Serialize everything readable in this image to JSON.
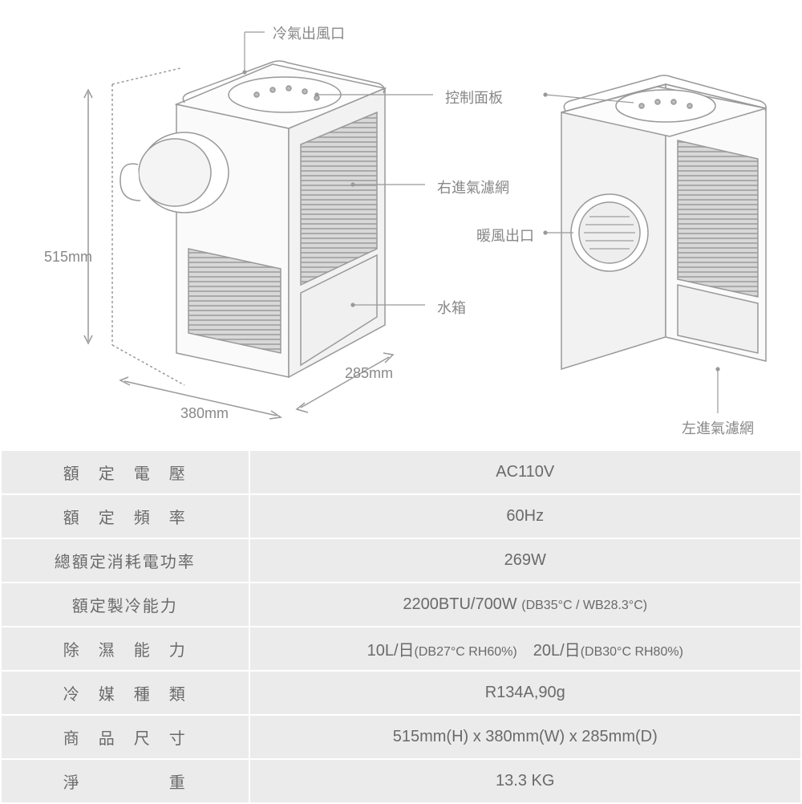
{
  "diagram": {
    "labels": {
      "air_outlet": "冷氣出風口",
      "control_panel": "控制面板",
      "right_filter": "右進氣濾網",
      "warm_outlet": "暖風出口",
      "water_tank": "水箱",
      "left_filter": "左進氣濾網"
    },
    "dimensions": {
      "height": "515mm",
      "width": "380mm",
      "depth": "285mm"
    },
    "colors": {
      "stroke": "#999999",
      "text": "#888888",
      "fill_light": "#f5f5f5",
      "fill_body": "#fafafa",
      "vent": "#bdbdbd"
    }
  },
  "specs": {
    "rows": [
      {
        "label": "額　定　電　壓",
        "value": "AC110V"
      },
      {
        "label": "額　定　頻　率",
        "value": "60Hz"
      },
      {
        "label": "總額定消耗電功率",
        "value": "269W"
      },
      {
        "label": "額定製冷能力",
        "value_html": "2200BTU/700W <span class='small'>(DB35°C / WB28.3°C)</span>"
      },
      {
        "label": "除　濕　能　力",
        "value_html": "10L/日<span class='small'>(DB27°C RH60%)</span>　20L/日<span class='small'>(DB30°C RH80%)</span>"
      },
      {
        "label": "冷　媒　種　類",
        "value": "R134A,90g"
      },
      {
        "label": "商　品　尺　寸",
        "value": "515mm(H) x 380mm(W) x 285mm(D)"
      },
      {
        "label": "淨　　　　　重",
        "value": "13.3 KG"
      }
    ],
    "colors": {
      "cell_bg": "#ebebeb",
      "border": "#ffffff",
      "text": "#6a6a6a"
    }
  }
}
